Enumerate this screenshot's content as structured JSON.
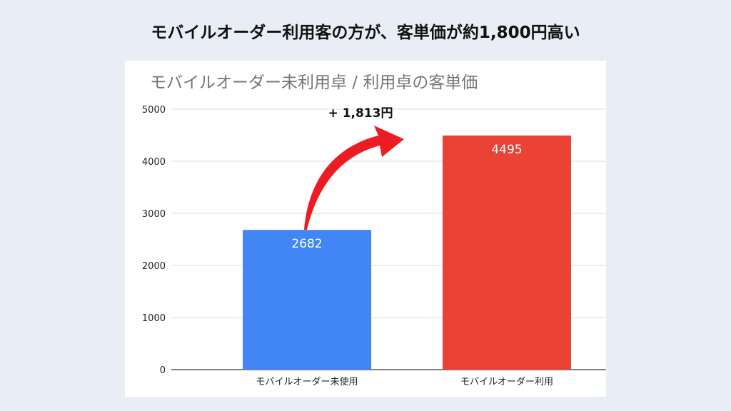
{
  "headline": "モバイルオーダー利用客の方が、客単価が約1,800円高い",
  "chart_data": {
    "type": "bar",
    "title": "モバイルオーダー未利用卓 / 利用卓の客単価",
    "categories": [
      "モバイルオーダー未使用",
      "モバイルオーダー利用"
    ],
    "values": [
      2682,
      4495
    ],
    "colors": [
      "#4285f4",
      "#ea4335"
    ],
    "ylim": [
      0,
      5000
    ],
    "yticks": [
      0,
      1000,
      2000,
      3000,
      4000,
      5000
    ],
    "grid": true,
    "xlabel": "",
    "ylabel": "",
    "annotation": "+ 1,813円"
  }
}
